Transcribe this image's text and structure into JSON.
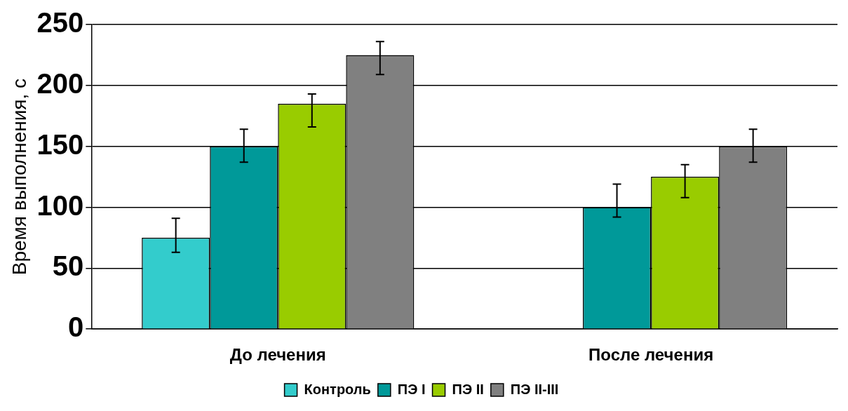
{
  "chart_data": {
    "type": "bar",
    "ylabel": "Время выполнения, с",
    "categories": [
      "До лечения",
      "После лечения"
    ],
    "series": [
      {
        "name": "Контроль",
        "color": "#33cccc",
        "values": [
          75,
          null
        ],
        "errors": [
          [
            63,
            91
          ],
          null
        ]
      },
      {
        "name": "ПЭ I",
        "color": "#009999",
        "values": [
          150,
          100
        ],
        "errors": [
          [
            137,
            164
          ],
          [
            92,
            119
          ]
        ]
      },
      {
        "name": "ПЭ II",
        "color": "#99cc00",
        "values": [
          185,
          125
        ],
        "errors": [
          [
            166,
            193
          ],
          [
            108,
            135
          ]
        ]
      },
      {
        "name": "ПЭ II-III",
        "color": "#808080",
        "values": [
          225,
          150
        ],
        "errors": [
          [
            209,
            236
          ],
          [
            137,
            164
          ]
        ]
      }
    ],
    "ylim": [
      0,
      250
    ],
    "yticks": [
      0,
      50,
      100,
      150,
      200,
      250
    ],
    "grid": "y",
    "legend": "bottom"
  }
}
